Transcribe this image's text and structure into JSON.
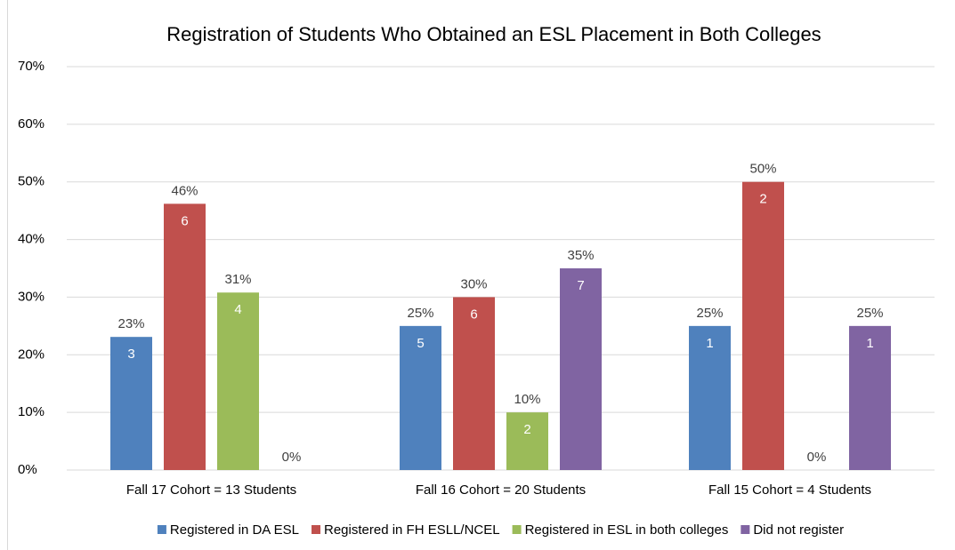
{
  "chart_data": {
    "type": "bar",
    "title": "Registration of Students Who Obtained an ESL Placement in Both Colleges",
    "categories": [
      "Fall 17 Cohort = 13 Students",
      "Fall 16 Cohort = 20 Students",
      "Fall 15 Cohort = 4 Students"
    ],
    "series": [
      {
        "name": "Registered in DA ESL",
        "color": "#4f81bd",
        "values": [
          23.1,
          25,
          25
        ],
        "value_labels": [
          "23%",
          "25%",
          "25%"
        ],
        "counts": [
          3,
          5,
          1
        ]
      },
      {
        "name": "Registered in FH ESLL/NCEL",
        "color": "#c0504d",
        "values": [
          46.2,
          30,
          50
        ],
        "value_labels": [
          "46%",
          "30%",
          "50%"
        ],
        "counts": [
          6,
          6,
          2
        ]
      },
      {
        "name": "Registered in ESL in both colleges",
        "color": "#9bbb59",
        "values": [
          30.8,
          10,
          0
        ],
        "value_labels": [
          "31%",
          "10%",
          "0%"
        ],
        "counts": [
          4,
          2,
          null
        ]
      },
      {
        "name": "Did not register",
        "color": "#8064a2",
        "values": [
          0,
          35,
          25
        ],
        "value_labels": [
          "0%",
          "35%",
          "25%"
        ],
        "counts": [
          null,
          7,
          1
        ]
      }
    ],
    "ylim": [
      0,
      70
    ],
    "yticks": [
      {
        "value": 0,
        "label": "0%"
      },
      {
        "value": 10,
        "label": "10%"
      },
      {
        "value": 20,
        "label": "20%"
      },
      {
        "value": 30,
        "label": "30%"
      },
      {
        "value": 40,
        "label": "40%"
      },
      {
        "value": 50,
        "label": "50%"
      },
      {
        "value": 60,
        "label": "60%"
      },
      {
        "value": 70,
        "label": "70%"
      }
    ],
    "grid": true,
    "legend": "bottom"
  }
}
